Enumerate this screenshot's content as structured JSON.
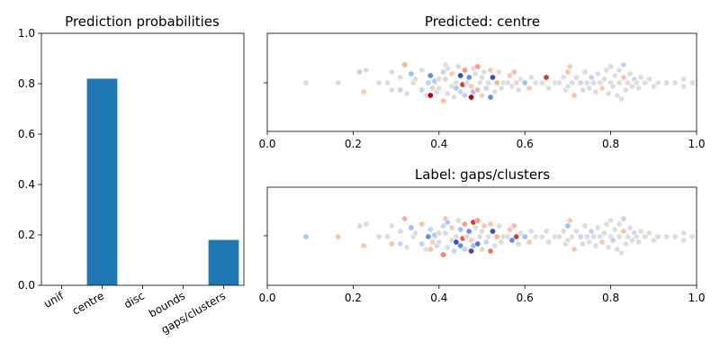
{
  "chart_data": [
    {
      "type": "bar",
      "title": "Prediction probabilities",
      "categories": [
        "unif",
        "centre",
        "disc",
        "bounds",
        "gaps/clusters"
      ],
      "values": [
        0,
        0.82,
        0,
        0,
        0.18
      ],
      "ylim": [
        0,
        1
      ],
      "yticks": [
        "0.0",
        "0.2",
        "0.4",
        "0.6",
        "0.8",
        "1.0"
      ],
      "bar_color": "#1f77b4"
    },
    {
      "type": "scatter",
      "title": "Predicted: centre",
      "xlim": [
        0,
        1
      ],
      "xticks": [
        "0.0",
        "0.2",
        "0.4",
        "0.6",
        "0.8",
        "1.0"
      ]
    },
    {
      "type": "scatter",
      "title": "Label: gaps/clusters",
      "xlim": [
        0,
        1
      ],
      "xticks": [
        "0.0",
        "0.2",
        "0.4",
        "0.6",
        "0.8",
        "1.0"
      ]
    }
  ],
  "swarm": {
    "colormap": "coolwarm",
    "points": [
      [
        0.09,
        0.0
      ],
      [
        0.165,
        0.0
      ],
      [
        0.215,
        0.6
      ],
      [
        0.225,
        -0.5
      ],
      [
        0.23,
        0.7
      ],
      [
        0.26,
        0.0
      ],
      [
        0.28,
        0.0
      ],
      [
        0.29,
        0.6
      ],
      [
        0.29,
        -0.4
      ],
      [
        0.31,
        0.3
      ],
      [
        0.31,
        -0.4
      ],
      [
        0.32,
        1.0
      ],
      [
        0.325,
        -0.6
      ],
      [
        0.335,
        0.5
      ],
      [
        0.34,
        0.0
      ],
      [
        0.345,
        0.2
      ],
      [
        0.36,
        -0.4
      ],
      [
        0.36,
        0.7
      ],
      [
        0.37,
        -0.7
      ],
      [
        0.375,
        0.0
      ],
      [
        0.38,
        -0.7
      ],
      [
        0.38,
        0.4
      ],
      [
        0.385,
        -0.3
      ],
      [
        0.39,
        0.0
      ],
      [
        0.39,
        0.1
      ],
      [
        0.395,
        -0.5
      ],
      [
        0.4,
        0.2
      ],
      [
        0.4,
        -0.3
      ],
      [
        0.41,
        -1.0
      ],
      [
        0.41,
        0.6
      ],
      [
        0.415,
        0.2
      ],
      [
        0.415,
        1.0
      ],
      [
        0.42,
        -0.6
      ],
      [
        0.42,
        0.8
      ],
      [
        0.43,
        -0.2
      ],
      [
        0.43,
        0.5
      ],
      [
        0.435,
        -0.8
      ],
      [
        0.44,
        0.0
      ],
      [
        0.44,
        -0.3
      ],
      [
        0.445,
        0.9
      ],
      [
        0.45,
        -0.5
      ],
      [
        0.45,
        0.4
      ],
      [
        0.455,
        -0.1
      ],
      [
        0.46,
        -0.7
      ],
      [
        0.46,
        0.7
      ],
      [
        0.465,
        0.0
      ],
      [
        0.47,
        0.3
      ],
      [
        0.475,
        -0.8
      ],
      [
        0.475,
        -0.2
      ],
      [
        0.48,
        0.8
      ],
      [
        0.48,
        -0.5
      ],
      [
        0.485,
        0.5
      ],
      [
        0.49,
        -0.4
      ],
      [
        0.49,
        0.9
      ],
      [
        0.495,
        0.0
      ],
      [
        0.5,
        0.3
      ],
      [
        0.5,
        -0.7
      ],
      [
        0.505,
        0.6
      ],
      [
        0.51,
        -0.3
      ],
      [
        0.515,
        0.0
      ],
      [
        0.52,
        -0.8
      ],
      [
        0.52,
        0.7
      ],
      [
        0.525,
        0.3
      ],
      [
        0.53,
        -0.5
      ],
      [
        0.535,
        0.0
      ],
      [
        0.54,
        0.6
      ],
      [
        0.545,
        -0.3
      ],
      [
        0.55,
        0.0
      ],
      [
        0.56,
        0.0
      ],
      [
        0.565,
        0.4
      ],
      [
        0.57,
        -0.2
      ],
      [
        0.575,
        0.6
      ],
      [
        0.58,
        0.0
      ],
      [
        0.585,
        -0.4
      ],
      [
        0.59,
        0.2
      ],
      [
        0.6,
        0.0
      ],
      [
        0.61,
        -0.3
      ],
      [
        0.615,
        0.3
      ],
      [
        0.625,
        0.0
      ],
      [
        0.64,
        0.0
      ],
      [
        0.65,
        0.3
      ],
      [
        0.655,
        -0.3
      ],
      [
        0.67,
        0.0
      ],
      [
        0.68,
        0.0
      ],
      [
        0.69,
        0.3
      ],
      [
        0.695,
        -0.4
      ],
      [
        0.7,
        0.6
      ],
      [
        0.7,
        -0.2
      ],
      [
        0.705,
        0.9
      ],
      [
        0.71,
        0.0
      ],
      [
        0.715,
        -0.7
      ],
      [
        0.72,
        0.3
      ],
      [
        0.73,
        0.0
      ],
      [
        0.735,
        -0.4
      ],
      [
        0.74,
        0.6
      ],
      [
        0.745,
        0.0
      ],
      [
        0.75,
        -0.3
      ],
      [
        0.755,
        0.3
      ],
      [
        0.76,
        0.0
      ],
      [
        0.765,
        -0.5
      ],
      [
        0.77,
        0.5
      ],
      [
        0.775,
        0.0
      ],
      [
        0.78,
        -0.3
      ],
      [
        0.785,
        0.2
      ],
      [
        0.79,
        0.7
      ],
      [
        0.795,
        -0.6
      ],
      [
        0.8,
        0.0
      ],
      [
        0.8,
        0.9
      ],
      [
        0.805,
        -0.2
      ],
      [
        0.81,
        0.4
      ],
      [
        0.815,
        -0.7
      ],
      [
        0.82,
        0.0
      ],
      [
        0.82,
        0.7
      ],
      [
        0.825,
        -0.9
      ],
      [
        0.83,
        1.0
      ],
      [
        0.83,
        0.3
      ],
      [
        0.835,
        -0.4
      ],
      [
        0.84,
        0.0
      ],
      [
        0.845,
        0.5
      ],
      [
        0.85,
        -0.2
      ],
      [
        0.855,
        0.2
      ],
      [
        0.86,
        0.0
      ],
      [
        0.865,
        -0.3
      ],
      [
        0.87,
        0.3
      ],
      [
        0.88,
        0.0
      ],
      [
        0.89,
        0.2
      ],
      [
        0.9,
        -0.2
      ],
      [
        0.91,
        0.0
      ],
      [
        0.93,
        0.0
      ],
      [
        0.95,
        0.0
      ],
      [
        0.97,
        0.2
      ],
      [
        0.97,
        -0.2
      ],
      [
        0.99,
        0.0
      ]
    ],
    "colors_top": [
      "#dddddd",
      "#dddddd",
      "#f4c6af",
      "#f2cbb7",
      "#dcdddf",
      "#dddddd",
      "#dddddd",
      "#dcdddf",
      "#dcdddf",
      "#e3d9d3",
      "#c5d6f2",
      "#f2b49a",
      "#dddddd",
      "#9ebeff",
      "#e8d6cc",
      "#dddddd",
      "#c0d4f5",
      "#dcdddf",
      "#dddddd",
      "#b9d0f9",
      "#b40426",
      "#6788ee",
      "#f1cdba",
      "#dddddd",
      "#aac7fd",
      "#cad8ef",
      "#e0dbd8",
      "#dcdddf",
      "#f5c0a7",
      "#c0d4f5",
      "#d5dbe5",
      "#dddddd",
      "#dcdddf",
      "#dddddd",
      "#e3d9d3",
      "#f1ccb8",
      "#dddddd",
      "#dcdddf",
      "#aac7fd",
      "#dddddd",
      "#c0d4f5",
      "#3b4cc0",
      "#cc3f39",
      "#c0d4f5",
      "#f5a081",
      "#dddddd",
      "#6a8bef",
      "#b40426",
      "#f1cdba",
      "#e3d9d3",
      "#9ebeff",
      "#dddddd",
      "#f7b79b",
      "#f5a081",
      "#dddddd",
      "#e3d9d3",
      "#ecd3c5",
      "#dcdddf",
      "#cad8ef",
      "#dddddd",
      "#6788ee",
      "#f2cbb7",
      "#3b4cc0",
      "#dddddd",
      "#f7b599",
      "#dddddd",
      "#dddddd",
      "#dddddd",
      "#dcdddf",
      "#f2cbb7",
      "#dddddd",
      "#f5c0a7",
      "#e3d9d3",
      "#d5dbe5",
      "#dddddd",
      "#9ebeff",
      "#f1ccb8",
      "#dddddd",
      "#dddddd",
      "#dddddd",
      "#cc3f39",
      "#dddddd",
      "#dddddd",
      "#dcdddf",
      "#dddddd",
      "#dddddd",
      "#f4c6af",
      "#dcdddf",
      "#f2cbb7",
      "#dcdddf",
      "#f4c6af",
      "#dddddd",
      "#c5d6f2",
      "#e3d9d3",
      "#dddddd",
      "#dddddd",
      "#dcdddf",
      "#c0d4f5",
      "#dddddd",
      "#dddddd",
      "#dddddd",
      "#dcdddf",
      "#f2cbb7",
      "#dddddd",
      "#dddddd",
      "#dcdddf",
      "#dddddd",
      "#dddddd",
      "#dddddd",
      "#dddddd",
      "#dcdddf",
      "#dddddd",
      "#dddddd",
      "#dddddd",
      "#c0d4f5",
      "#f4c6af",
      "#dddddd",
      "#dddddd",
      "#dcdddf",
      "#dddddd",
      "#c5d6f2",
      "#dddddd",
      "#dddddd",
      "#dddddd",
      "#dddddd",
      "#dddddd",
      "#dddddd",
      "#dddddd",
      "#dddddd",
      "#dddddd",
      "#dddddd",
      "#dddddd",
      "#dddddd"
    ],
    "colors_bottom": [
      "#aac7fd",
      "#f4c6af",
      "#dddddd",
      "#f2cbb7",
      "#dcdddf",
      "#dddddd",
      "#dddddd",
      "#dcdddf",
      "#f4c6af",
      "#e3d9d3",
      "#c5d6f2",
      "#f2b49a",
      "#dddddd",
      "#9ebeff",
      "#e8d6cc",
      "#dddddd",
      "#c0d4f5",
      "#f4c6af",
      "#dddddd",
      "#6a8bef",
      "#f5c0a7",
      "#c5d6f2",
      "#f1cdba",
      "#dddddd",
      "#aac7fd",
      "#cad8ef",
      "#e0dbd8",
      "#dcdddf",
      "#f08a6c",
      "#c0d4f5",
      "#d5dbe5",
      "#f4c6af",
      "#dcdddf",
      "#aac7fd",
      "#e3d9d3",
      "#f1ccb8",
      "#c0d4f5",
      "#dcdddf",
      "#3b4cc0",
      "#dddddd",
      "#6788ee",
      "#9ebeff",
      "#dc5d4a",
      "#c0d4f5",
      "#f5a081",
      "#dddddd",
      "#6a8bef",
      "#3b4cc0",
      "#f1cdba",
      "#cc3f39",
      "#9ebeff",
      "#dddddd",
      "#5977e3",
      "#f5a081",
      "#dddddd",
      "#e3d9d3",
      "#ecd3c5",
      "#f4c6af",
      "#cad8ef",
      "#dddddd",
      "#e7745b",
      "#f2cbb7",
      "#3b4cc0",
      "#dddddd",
      "#f7b599",
      "#dddddd",
      "#dddddd",
      "#dddddd",
      "#dcdddf",
      "#f2cbb7",
      "#6a8bef",
      "#f5c0a7",
      "#cc3f39",
      "#d5dbe5",
      "#dddddd",
      "#9ebeff",
      "#f1ccb8",
      "#dddddd",
      "#dddddd",
      "#dddddd",
      "#dcdddf",
      "#dddddd",
      "#dddddd",
      "#dcdddf",
      "#dddddd",
      "#dddddd",
      "#9ebeff",
      "#dcdddf",
      "#f2cbb7",
      "#dcdddf",
      "#f4c6af",
      "#dddddd",
      "#c5d6f2",
      "#e3d9d3",
      "#dddddd",
      "#dddddd",
      "#dcdddf",
      "#c0d4f5",
      "#dddddd",
      "#dddddd",
      "#dddddd",
      "#dcdddf",
      "#f2cbb7",
      "#dddddd",
      "#dddddd",
      "#dcdddf",
      "#dddddd",
      "#dddddd",
      "#c0d4f5",
      "#dddddd",
      "#dcdddf",
      "#dddddd",
      "#dddddd",
      "#dddddd",
      "#c0d4f5",
      "#f4c6af",
      "#dddddd",
      "#dddddd",
      "#dcdddf",
      "#dddddd",
      "#c5d6f2",
      "#dddddd",
      "#dddddd",
      "#dddddd",
      "#dddddd",
      "#dddddd",
      "#dddddd",
      "#dddddd",
      "#dddddd",
      "#dddddd",
      "#dddddd",
      "#dddddd",
      "#dddddd"
    ]
  }
}
